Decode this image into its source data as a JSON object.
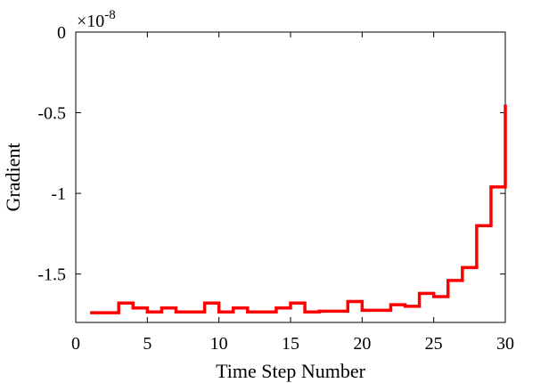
{
  "chart_data": {
    "type": "line",
    "style": "stairs",
    "xlabel": "Time Step Number",
    "ylabel": "Gradient",
    "exponent_label": "×10",
    "exponent_power": "-8",
    "xlim": [
      0,
      30
    ],
    "ylim": [
      -1.8,
      0
    ],
    "xticks": [
      0,
      5,
      10,
      15,
      20,
      25,
      30
    ],
    "xtick_labels": [
      "0",
      "5",
      "10",
      "15",
      "20",
      "25",
      "30"
    ],
    "yticks": [
      0,
      -0.5,
      -1,
      -1.5
    ],
    "ytick_labels": [
      "0",
      "-0.5",
      "-1",
      "-1.5"
    ],
    "grid": false,
    "series": [
      {
        "color": "#ff0000",
        "x": [
          1,
          2,
          3,
          4,
          5,
          6,
          7,
          8,
          9,
          10,
          11,
          12,
          13,
          14,
          15,
          16,
          17,
          18,
          19,
          20,
          21,
          22,
          23,
          24,
          25,
          26,
          27,
          28,
          29,
          30
        ],
        "y": [
          -1.74,
          -1.74,
          -1.68,
          -1.71,
          -1.735,
          -1.71,
          -1.735,
          -1.735,
          -1.68,
          -1.735,
          -1.71,
          -1.735,
          -1.735,
          -1.71,
          -1.68,
          -1.735,
          -1.73,
          -1.73,
          -1.67,
          -1.725,
          -1.725,
          -1.69,
          -1.7,
          -1.62,
          -1.64,
          -1.54,
          -1.46,
          -1.2,
          -0.96,
          -0.45
        ]
      }
    ]
  }
}
